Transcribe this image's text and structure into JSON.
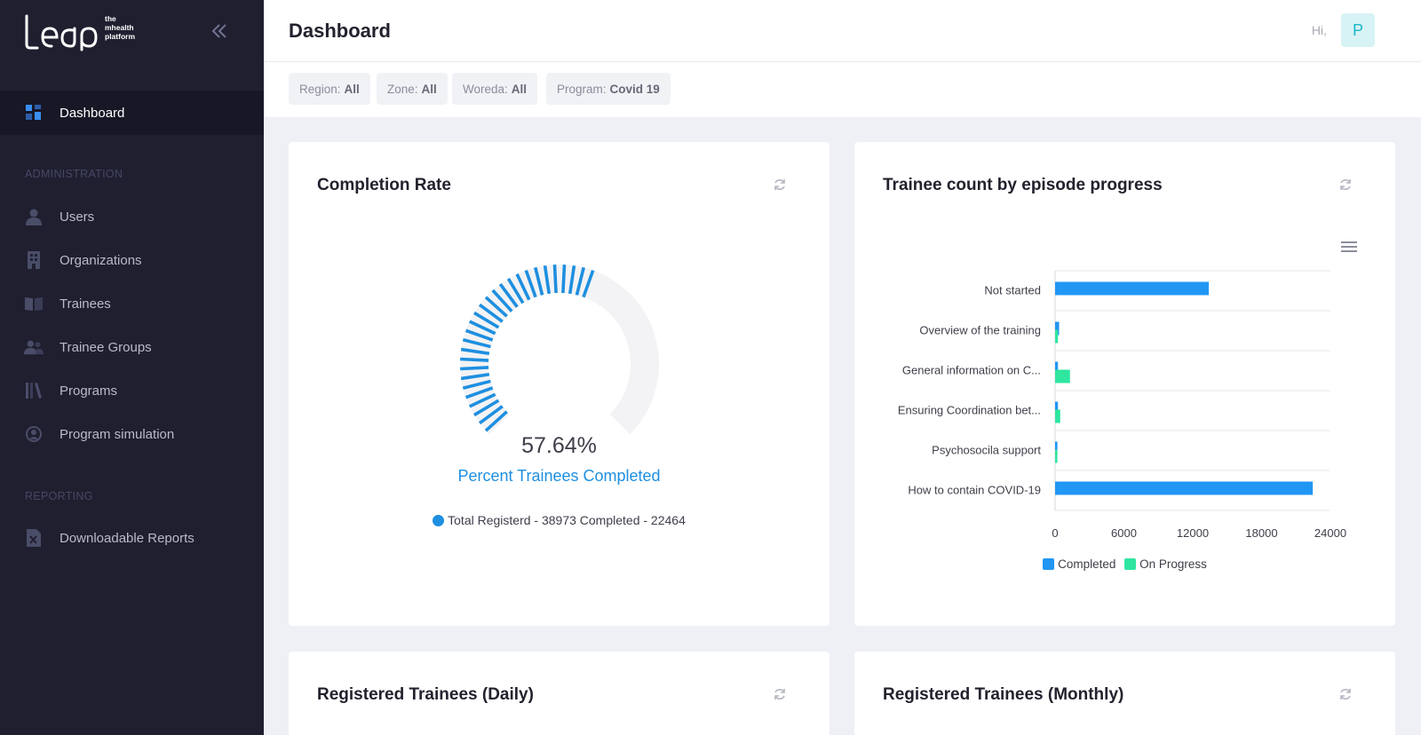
{
  "brand": {
    "name": "leap",
    "tagline": [
      "the",
      "mhealth",
      "platform"
    ]
  },
  "sidebar": {
    "dashboard": "Dashboard",
    "admin_section": "ADMINISTRATION",
    "admin_items": [
      {
        "label": "Users",
        "icon": "user-icon"
      },
      {
        "label": "Organizations",
        "icon": "building-icon"
      },
      {
        "label": "Trainees",
        "icon": "book-icon"
      },
      {
        "label": "Trainee Groups",
        "icon": "users-icon"
      },
      {
        "label": "Programs",
        "icon": "library-icon"
      },
      {
        "label": "Program simulation",
        "icon": "simulation-icon"
      }
    ],
    "reporting_section": "REPORTING",
    "reporting_items": [
      {
        "label": "Downloadable Reports",
        "icon": "excel-file-icon"
      }
    ]
  },
  "header": {
    "title": "Dashboard",
    "greeting": "Hi,",
    "avatar_initial": "P"
  },
  "filters": [
    {
      "label": "Region:",
      "value": "All"
    },
    {
      "label": "Zone:",
      "value": "All"
    },
    {
      "label": "Woreda:",
      "value": "All"
    },
    {
      "label": "Program:",
      "value": "Covid 19"
    }
  ],
  "completion": {
    "title": "Completion Rate",
    "percent": 57.64,
    "percent_text": "57.64%",
    "label": "Percent Trainees Completed",
    "totals_text": "Total Registerd - 38973 Completed - 22464"
  },
  "episode": {
    "title": "Trainee count by episode progress"
  },
  "chart_data": {
    "type": "bar",
    "orientation": "horizontal",
    "categories": [
      "Not started",
      "Overview of the training",
      "General information on C...",
      "Ensuring Coordination bet...",
      "Psychosocila support",
      "How to contain COVID-19"
    ],
    "series": [
      {
        "name": "Completed",
        "values": [
          13400,
          350,
          250,
          250,
          200,
          22464
        ],
        "color": "#2196f3"
      },
      {
        "name": "On Progress",
        "values": [
          0,
          250,
          1300,
          450,
          200,
          0
        ],
        "color": "#2ee6a0"
      }
    ],
    "xticks": [
      "0",
      "6000",
      "12000",
      "18000",
      "24000"
    ],
    "xlim": [
      0,
      24000
    ],
    "legend": "bottom-center"
  },
  "bottom_cards": {
    "daily": "Registered Trainees (Daily)",
    "monthly": "Registered Trainees (Monthly)"
  }
}
